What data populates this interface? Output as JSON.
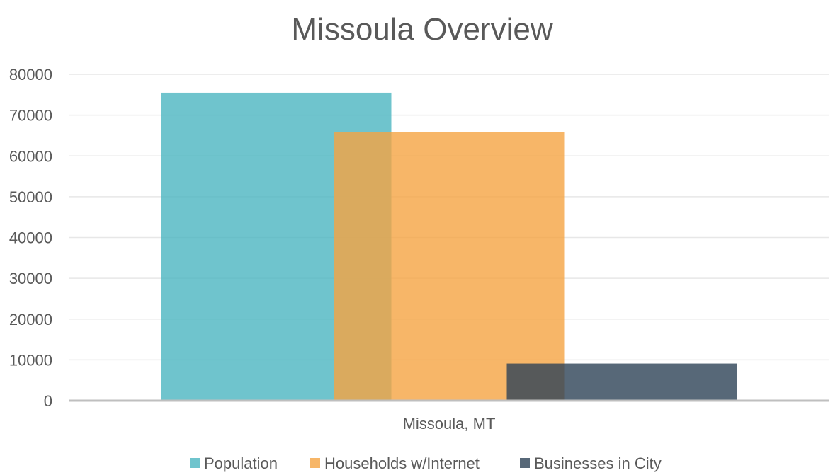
{
  "chart_data": {
    "type": "bar",
    "title": "Missoula Overview",
    "categories": [
      "Missoula, MT"
    ],
    "series": [
      {
        "name": "Population",
        "values": [
          75500
        ],
        "color": "#4bb5c1"
      },
      {
        "name": "Households w/Internet",
        "values": [
          65800
        ],
        "color": "#f5a442"
      },
      {
        "name": "Businesses in City",
        "values": [
          9100
        ],
        "color": "#2d4256"
      }
    ],
    "ylim": [
      0,
      80000
    ],
    "y_ticks": [
      0,
      10000,
      20000,
      30000,
      40000,
      50000,
      60000,
      70000,
      80000
    ],
    "grid": true,
    "legend_position": "bottom",
    "bar_overlap": true
  }
}
